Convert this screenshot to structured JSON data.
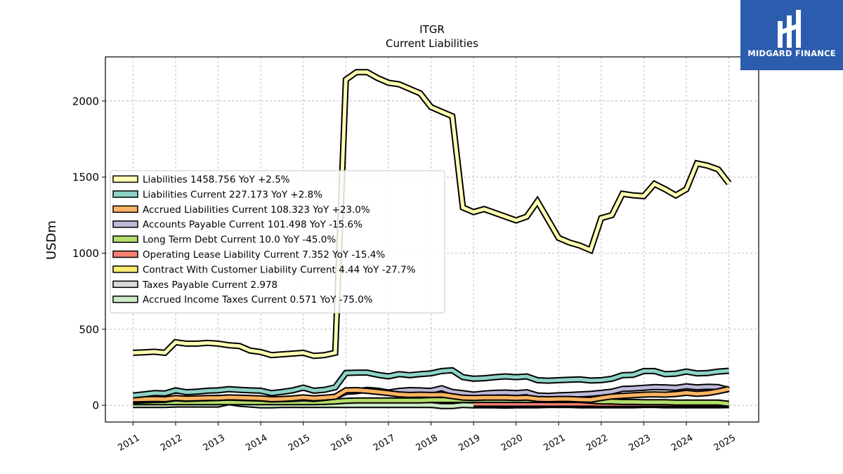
{
  "brand": {
    "name": "MIDGARD FINANCE"
  },
  "chart_data": {
    "type": "line",
    "title": "ITGR",
    "subtitle": "Current  Liabilities",
    "ylabel": "USDm",
    "xlabel": "",
    "ylim": [
      -110,
      2290
    ],
    "xlim": [
      2010.35,
      2025.7
    ],
    "yticks": [
      0,
      500,
      1000,
      1500,
      2000
    ],
    "xticks": [
      2011,
      2012,
      2013,
      2014,
      2015,
      2016,
      2017,
      2018,
      2019,
      2020,
      2021,
      2022,
      2023,
      2024,
      2025
    ],
    "grid": true,
    "legend_position": "center-left",
    "x": [
      2011.0,
      2011.25,
      2011.5,
      2011.75,
      2012.0,
      2012.25,
      2012.5,
      2012.75,
      2013.0,
      2013.25,
      2013.5,
      2013.75,
      2014.0,
      2014.25,
      2014.5,
      2014.75,
      2015.0,
      2015.25,
      2015.5,
      2015.75,
      2016.0,
      2016.25,
      2016.5,
      2016.75,
      2017.0,
      2017.25,
      2017.5,
      2017.75,
      2018.0,
      2018.25,
      2018.5,
      2018.75,
      2019.0,
      2019.25,
      2019.5,
      2019.75,
      2020.0,
      2020.25,
      2020.5,
      2020.75,
      2021.0,
      2021.25,
      2021.5,
      2021.75,
      2022.0,
      2022.25,
      2022.5,
      2022.75,
      2023.0,
      2023.25,
      2023.5,
      2023.75,
      2024.0,
      2024.25,
      2024.5,
      2024.75,
      2025.0
    ],
    "series": [
      {
        "name": "Liabilities",
        "legend": "Liabilities  1458.756 YoY +2.5%",
        "color": "#ffffb3",
        "values": [
          345,
          348,
          352,
          345,
          415,
          405,
          405,
          410,
          405,
          395,
          390,
          360,
          350,
          330,
          335,
          340,
          345,
          325,
          330,
          345,
          2140,
          2190,
          2190,
          2150,
          2120,
          2110,
          2080,
          2050,
          1960,
          1930,
          1900,
          1300,
          1270,
          1290,
          1265,
          1240,
          1215,
          1240,
          1340,
          1220,
          1100,
          1070,
          1050,
          1020,
          1230,
          1250,
          1390,
          1380,
          1375,
          1455,
          1420,
          1380,
          1420,
          1590,
          1575,
          1550,
          1459
        ]
      },
      {
        "name": "Liabilities Current",
        "legend": "Liabilities Current  227.173 YoY +2.8%",
        "color": "#8dd3c7",
        "values": [
          65,
          72,
          80,
          78,
          98,
          86,
          90,
          96,
          98,
          106,
          102,
          98,
          96,
          80,
          88,
          98,
          116,
          96,
          102,
          118,
          212,
          215,
          215,
          200,
          190,
          205,
          198,
          205,
          210,
          225,
          230,
          185,
          175,
          178,
          185,
          190,
          185,
          190,
          165,
          162,
          165,
          168,
          170,
          163,
          165,
          175,
          198,
          200,
          225,
          225,
          205,
          208,
          222,
          210,
          212,
          222,
          227
        ]
      },
      {
        "name": "Accrued Liabilities Current",
        "legend": "Accrued Liabilities Current  108.323 YoY +23.0%",
        "color": "#fdb462",
        "values": [
          38,
          40,
          42,
          40,
          48,
          44,
          46,
          48,
          48,
          52,
          50,
          48,
          46,
          40,
          42,
          46,
          52,
          46,
          50,
          56,
          98,
          100,
          95,
          88,
          80,
          72,
          68,
          70,
          68,
          70,
          60,
          50,
          48,
          50,
          50,
          50,
          48,
          50,
          42,
          40,
          42,
          42,
          38,
          36,
          48,
          58,
          62,
          66,
          70,
          72,
          70,
          74,
          82,
          75,
          80,
          92,
          108
        ]
      },
      {
        "name": "Accounts Payable Current",
        "legend": "Accounts Payable Current  101.498 YoY -15.6%",
        "color": "#bebada",
        "values": [
          30,
          32,
          35,
          36,
          46,
          42,
          44,
          46,
          48,
          50,
          48,
          46,
          44,
          38,
          40,
          42,
          46,
          42,
          48,
          56,
          88,
          92,
          102,
          96,
          85,
          95,
          100,
          98,
          95,
          112,
          88,
          80,
          70,
          78,
          82,
          84,
          80,
          86,
          65,
          62,
          66,
          68,
          72,
          75,
          82,
          90,
          108,
          110,
          115,
          120,
          118,
          115,
          125,
          118,
          122,
          120,
          101
        ]
      },
      {
        "name": "Long Term Debt Current",
        "legend": "Long Term Debt Current  10.0 YoY -45.0%",
        "color": "#b3de69",
        "values": [
          20,
          20,
          20,
          20,
          20,
          20,
          20,
          20,
          20,
          20,
          20,
          20,
          20,
          20,
          20,
          20,
          20,
          20,
          22,
          25,
          30,
          32,
          32,
          32,
          32,
          32,
          32,
          32,
          35,
          35,
          35,
          35,
          35,
          35,
          35,
          35,
          35,
          35,
          35,
          35,
          35,
          35,
          35,
          30,
          25,
          25,
          22,
          22,
          20,
          20,
          20,
          18,
          18,
          18,
          18,
          18,
          10
        ]
      },
      {
        "name": "Operating Lease Liability Current",
        "legend": "Operating Lease Liability Current  7.352 YoY -15.4%",
        "color": "#fb8072",
        "values": [
          null,
          null,
          null,
          null,
          null,
          null,
          null,
          null,
          null,
          null,
          null,
          null,
          null,
          null,
          null,
          null,
          null,
          null,
          null,
          null,
          null,
          null,
          null,
          null,
          null,
          null,
          null,
          null,
          null,
          null,
          null,
          null,
          10,
          10,
          10,
          10,
          10,
          10,
          10,
          10,
          10,
          10,
          10,
          10,
          9,
          9,
          9,
          9,
          9,
          9,
          9,
          9,
          9,
          9,
          9,
          9,
          7.352
        ]
      },
      {
        "name": "Contract With Customer Liability Current",
        "legend": "Contract With Customer Liability Current  4.44 YoY -27.7%",
        "color": "#ffed6f",
        "values": [
          null,
          null,
          null,
          null,
          null,
          null,
          null,
          null,
          null,
          null,
          null,
          null,
          null,
          null,
          null,
          null,
          null,
          null,
          null,
          null,
          null,
          null,
          null,
          null,
          null,
          null,
          null,
          null,
          null,
          null,
          null,
          null,
          8,
          8,
          7,
          7,
          7,
          7,
          6,
          6,
          6,
          6,
          6,
          6,
          6,
          6,
          6,
          6,
          6,
          6,
          6,
          6,
          6,
          5,
          5,
          5,
          4.44
        ]
      },
      {
        "name": "Taxes Payable Current",
        "legend": "Taxes Payable Current  2.978",
        "color": "#d9d9d9",
        "values": [
          null,
          null,
          null,
          null,
          null,
          null,
          null,
          null,
          null,
          null,
          null,
          null,
          null,
          null,
          null,
          null,
          null,
          null,
          null,
          null,
          null,
          null,
          null,
          null,
          null,
          null,
          null,
          null,
          null,
          null,
          null,
          null,
          null,
          null,
          null,
          null,
          null,
          null,
          null,
          null,
          null,
          null,
          null,
          null,
          null,
          null,
          null,
          null,
          null,
          null,
          null,
          null,
          null,
          null,
          null,
          3,
          2.978
        ]
      },
      {
        "name": "Accrued Income Taxes Current",
        "legend": "Accrued Income Taxes Current  0.571 YoY -75.0%",
        "color": "#ccebc5",
        "values": [
          2,
          2,
          2,
          2,
          5,
          5,
          5,
          5,
          5,
          20,
          10,
          5,
          0,
          0,
          2,
          2,
          2,
          2,
          2,
          2,
          2,
          2,
          2,
          2,
          2,
          2,
          2,
          2,
          2,
          -5,
          -5,
          2,
          0,
          0,
          0,
          -2,
          0,
          0,
          0,
          2,
          2,
          2,
          0,
          0,
          0,
          0,
          0,
          0,
          2,
          2,
          0,
          0,
          0,
          0,
          0,
          0,
          0.571
        ]
      }
    ]
  }
}
